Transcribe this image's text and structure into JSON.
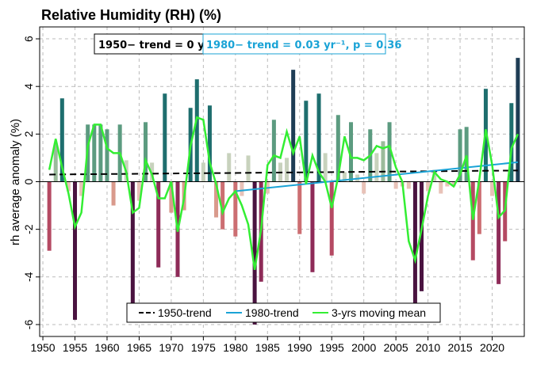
{
  "title": "Relative Humidity (RH)  (%)",
  "annotations": {
    "trend1950": "1950− trend = 0 yr⁻¹, p = 0.87",
    "trend1980": "1980− trend = 0.03 yr⁻¹, p = 0.36"
  },
  "colors": {
    "trend1950": "#000000",
    "trend1980": "#1aa3d6",
    "moving_mean": "#33ee33",
    "grid": "#bbbbbb"
  },
  "chart_data": {
    "type": "bar",
    "title": "Relative Humidity (RH)  (%)",
    "xlabel": "",
    "ylabel": "rh average anomaly (%)",
    "xlim": [
      1949.5,
      2025
    ],
    "ylim": [
      -6.5,
      6.5
    ],
    "xticks": [
      1950,
      1955,
      1960,
      1965,
      1970,
      1975,
      1980,
      1985,
      1990,
      1995,
      2000,
      2005,
      2010,
      2015,
      2020
    ],
    "yticks": [
      -6,
      -4,
      -2,
      0,
      2,
      4,
      6
    ],
    "grid": true,
    "legend_position": "bottom-center",
    "legend": [
      "1950-trend",
      "1980-trend",
      "3-yrs moving mean"
    ],
    "years": [
      1951,
      1952,
      1953,
      1954,
      1955,
      1956,
      1957,
      1958,
      1959,
      1960,
      1961,
      1962,
      1963,
      1964,
      1965,
      1966,
      1967,
      1968,
      1969,
      1970,
      1971,
      1972,
      1973,
      1974,
      1975,
      1976,
      1977,
      1978,
      1979,
      1980,
      1981,
      1982,
      1983,
      1984,
      1985,
      1986,
      1987,
      1988,
      1989,
      1990,
      1991,
      1992,
      1993,
      1994,
      1995,
      1996,
      1997,
      1998,
      1999,
      2000,
      2001,
      2002,
      2003,
      2004,
      2005,
      2006,
      2007,
      2008,
      2009,
      2010,
      2011,
      2012,
      2013,
      2014,
      2015,
      2016,
      2017,
      2018,
      2019,
      2020,
      2021,
      2022,
      2023,
      2024
    ],
    "values": [
      -2.9,
      1.6,
      3.5,
      -0.4,
      -5.8,
      -0.6,
      2.4,
      2.4,
      2.4,
      2.2,
      -1.0,
      2.4,
      0.9,
      -5.2,
      -0.8,
      2.5,
      0.8,
      -3.6,
      3.7,
      -1.3,
      -4.0,
      -1.2,
      3.1,
      4.3,
      0.8,
      3.2,
      -1.5,
      -2.0,
      1.2,
      -2.3,
      -0.6,
      1.1,
      -6.0,
      -4.2,
      -0.5,
      2.6,
      0.8,
      1.0,
      4.7,
      -2.2,
      3.4,
      -3.8,
      3.7,
      1.2,
      -3.1,
      2.8,
      0.4,
      2.5,
      0.3,
      -0.5,
      2.2,
      1.2,
      1.7,
      2.5,
      -0.3,
      -0.2,
      -0.3,
      -5.1,
      -4.6,
      -0.4,
      0.5,
      -0.5,
      -0.2,
      -0.2,
      2.2,
      2.3,
      -3.3,
      -2.2,
      3.9,
      -0.6,
      -4.3,
      -2.5,
      3.3,
      5.2
    ],
    "series": [
      {
        "name": "1950-trend",
        "x": [
          1951,
          2024
        ],
        "y": [
          0.3,
          0.47
        ]
      },
      {
        "name": "1980-trend",
        "x": [
          1980,
          2024
        ],
        "y": [
          -0.4,
          0.82
        ]
      },
      {
        "name": "3-yrs moving mean",
        "x": [
          1951,
          1952,
          1953,
          1954,
          1955,
          1956,
          1957,
          1958,
          1959,
          1960,
          1961,
          1962,
          1963,
          1964,
          1965,
          1966,
          1967,
          1968,
          1969,
          1970,
          1971,
          1972,
          1973,
          1974,
          1975,
          1976,
          1977,
          1978,
          1979,
          1980,
          1981,
          1982,
          1983,
          1984,
          1985,
          1986,
          1987,
          1988,
          1989,
          1990,
          1991,
          1992,
          1993,
          1994,
          1995,
          1996,
          1997,
          1998,
          1999,
          2000,
          2001,
          2002,
          2003,
          2004,
          2005,
          2006,
          2007,
          2008,
          2009,
          2010,
          2011,
          2012,
          2013,
          2014,
          2015,
          2016,
          2017,
          2018,
          2019,
          2020,
          2021,
          2022,
          2023,
          2024
        ],
        "y": [
          0.5,
          1.8,
          0.6,
          -0.5,
          -1.9,
          -1.3,
          1.5,
          2.4,
          2.4,
          1.4,
          1.2,
          1.2,
          0.4,
          -1.3,
          -1.1,
          0.9,
          0.3,
          -0.7,
          -0.7,
          0.0,
          -2.1,
          -0.7,
          1.5,
          2.7,
          2.6,
          0.8,
          -0.1,
          -1.3,
          -0.7,
          -0.4,
          -1.0,
          -1.8,
          -3.7,
          -2.0,
          0.7,
          1.1,
          1.0,
          2.1,
          1.2,
          1.9,
          -0.1,
          1.1,
          0.4,
          0.0,
          -1.1,
          0.2,
          1.9,
          1.0,
          1.0,
          0.9,
          1.1,
          1.5,
          1.4,
          1.5,
          0.6,
          0.0,
          -2.5,
          -3.3,
          -2.0,
          -0.6,
          0.4,
          0.1,
          0.0,
          -0.2,
          0.3,
          1.1,
          -1.6,
          0.1,
          2.2,
          0.7,
          -1.5,
          -1.2,
          1.4,
          2.0
        ]
      }
    ]
  }
}
